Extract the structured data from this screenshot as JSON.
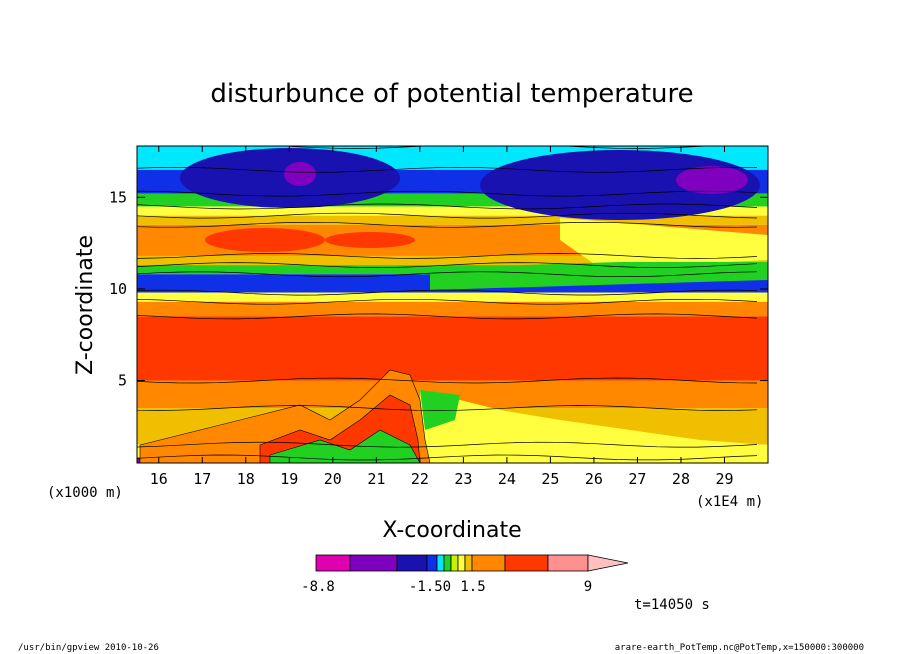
{
  "chart_data": {
    "type": "heatmap",
    "title": "disturbunce of potential temperature",
    "xlabel": "X-coordinate",
    "ylabel": "Z-coordinate",
    "x_unit_left": "(x1000 m)",
    "x_unit_right": "(x1E4 m)",
    "xlim": [
      15.5,
      30
    ],
    "ylim": [
      0.5,
      17.8
    ],
    "x_ticks": [
      16,
      17,
      18,
      19,
      20,
      21,
      22,
      23,
      24,
      25,
      26,
      27,
      28,
      29
    ],
    "y_ticks": [
      5,
      10,
      15
    ],
    "z_range": [
      -8.8,
      9
    ],
    "legend_labels": [
      "-8.8",
      "-1.50",
      "1.5",
      "9"
    ],
    "time_label": "t=14050 s",
    "colors": {
      "scale": [
        "#e000b0",
        "#8000c0",
        "#1a12b0",
        "#1030e8",
        "#00e8ff",
        "#22d022",
        "#c8f000",
        "#ffff40",
        "#f0c000",
        "#ff8800",
        "#ff3800",
        "#ff6060",
        "#ff9090",
        "#ffc0c0"
      ],
      "bands": [
        {
          "z": [
            16.5,
            17.8
          ],
          "color": "#00e8ff"
        },
        {
          "z": [
            15.2,
            16.5
          ],
          "color": "#1030e8"
        },
        {
          "z": [
            14.5,
            15.2
          ],
          "color": "#22d022"
        },
        {
          "z": [
            14.0,
            14.5
          ],
          "color": "#ffff40"
        },
        {
          "z": [
            13.5,
            14.0
          ],
          "color": "#f0c000"
        },
        {
          "z": [
            11.8,
            13.5
          ],
          "color": "#ff8800"
        },
        {
          "z": [
            11.3,
            11.8
          ],
          "color": "#f0c000"
        },
        {
          "z": [
            10.8,
            11.3
          ],
          "color": "#22d022"
        },
        {
          "z": [
            9.8,
            10.8
          ],
          "color": "#1030e8"
        },
        {
          "z": [
            9.3,
            9.8
          ],
          "color": "#ffff40"
        },
        {
          "z": [
            8.5,
            9.3
          ],
          "color": "#ff8800"
        },
        {
          "z": [
            5.0,
            8.5
          ],
          "color": "#ff3800"
        },
        {
          "z": [
            3.5,
            5.0
          ],
          "color": "#ff8800"
        },
        {
          "z": [
            1.5,
            3.5
          ],
          "color": "#f0c000"
        },
        {
          "z": [
            0.8,
            1.5
          ],
          "color": "#ffff40"
        },
        {
          "z": [
            0.5,
            0.8
          ],
          "color": "#8000c0"
        }
      ]
    }
  },
  "footer": {
    "left": "/usr/bin/gpview  2010-10-26",
    "right": "arare-earth_PotTemp.nc@PotTemp,x=150000:300000"
  }
}
